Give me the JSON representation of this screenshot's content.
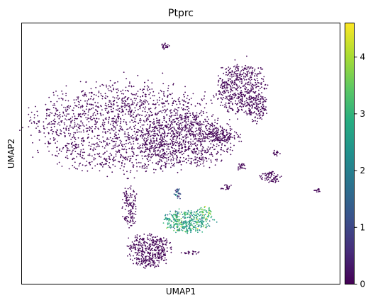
{
  "chart_data": {
    "type": "scatter",
    "title": "Ptprc",
    "xlabel": "UMAP1",
    "ylabel": "UMAP2",
    "x_ticks_shown": false,
    "y_ticks_shown": false,
    "grid": false,
    "point_size": "tiny",
    "colormap": "viridis",
    "colorbar": {
      "min": 0,
      "max": 4.6,
      "ticks": [
        0,
        1,
        2,
        3,
        4
      ],
      "tick_labels": [
        "0",
        "1",
        "2",
        "3",
        "4"
      ],
      "placement": "right"
    },
    "xlim": [
      0,
      100
    ],
    "ylim": [
      0,
      100
    ],
    "clusters": [
      {
        "id": "large-left-cluster",
        "cx": 33,
        "cy": 60,
        "rx": 27,
        "ry": 16,
        "n": 1800,
        "value": 0.05
      },
      {
        "id": "left-cluster-extension",
        "cx": 52,
        "cy": 55,
        "rx": 14,
        "ry": 9,
        "n": 600,
        "value": 0.05
      },
      {
        "id": "left-cluster-tail",
        "cx": 62,
        "cy": 57,
        "rx": 6,
        "ry": 2.5,
        "n": 140,
        "value": 0.05
      },
      {
        "id": "upper-right-cluster",
        "cx": 69,
        "cy": 75,
        "rx": 7,
        "ry": 9,
        "n": 520,
        "value": 0.05
      },
      {
        "id": "upper-right-lobe",
        "cx": 74,
        "cy": 67,
        "rx": 3,
        "ry": 5,
        "n": 120,
        "value": 0.05
      },
      {
        "id": "bottom-cluster",
        "cx": 40,
        "cy": 13,
        "rx": 6,
        "ry": 6,
        "n": 420,
        "value": 0.05
      },
      {
        "id": "bottom-cluster-stalk",
        "cx": 34,
        "cy": 30,
        "rx": 2.2,
        "ry": 8,
        "n": 130,
        "value": 0.05
      },
      {
        "id": "small-top-cluster",
        "cx": 45,
        "cy": 91,
        "rx": 1.2,
        "ry": 1.2,
        "n": 25,
        "value": 0.05
      },
      {
        "id": "right-small-cluster-a",
        "cx": 78,
        "cy": 41,
        "rx": 3,
        "ry": 2,
        "n": 70,
        "value": 0.05
      },
      {
        "id": "right-small-cluster-b",
        "cx": 69,
        "cy": 45,
        "rx": 1.5,
        "ry": 1.2,
        "n": 25,
        "value": 0.05
      },
      {
        "id": "right-small-cluster-c",
        "cx": 64,
        "cy": 37,
        "rx": 1.5,
        "ry": 1.2,
        "n": 20,
        "value": 0.05
      },
      {
        "id": "far-right-dot",
        "cx": 93,
        "cy": 36,
        "rx": 1.2,
        "ry": 0.8,
        "n": 15,
        "value": 0.05
      },
      {
        "id": "right-mid-dots",
        "cx": 80,
        "cy": 50,
        "rx": 1,
        "ry": 1.5,
        "n": 15,
        "value": 0.05
      },
      {
        "id": "immune-cluster",
        "cx": 52,
        "cy": 24,
        "rx": 7,
        "ry": 4,
        "n": 380,
        "value": 2.7
      },
      {
        "id": "immune-cluster-tip",
        "cx": 58,
        "cy": 28,
        "rx": 2,
        "ry": 2,
        "n": 40,
        "value": 3.3
      },
      {
        "id": "small-mid-cluster",
        "cx": 49,
        "cy": 35,
        "rx": 1,
        "ry": 1.8,
        "n": 30,
        "value": 1.4
      },
      {
        "id": "small-bar-bottom",
        "cx": 53,
        "cy": 12,
        "rx": 3,
        "ry": 0.7,
        "n": 20,
        "value": 0.05
      }
    ]
  }
}
